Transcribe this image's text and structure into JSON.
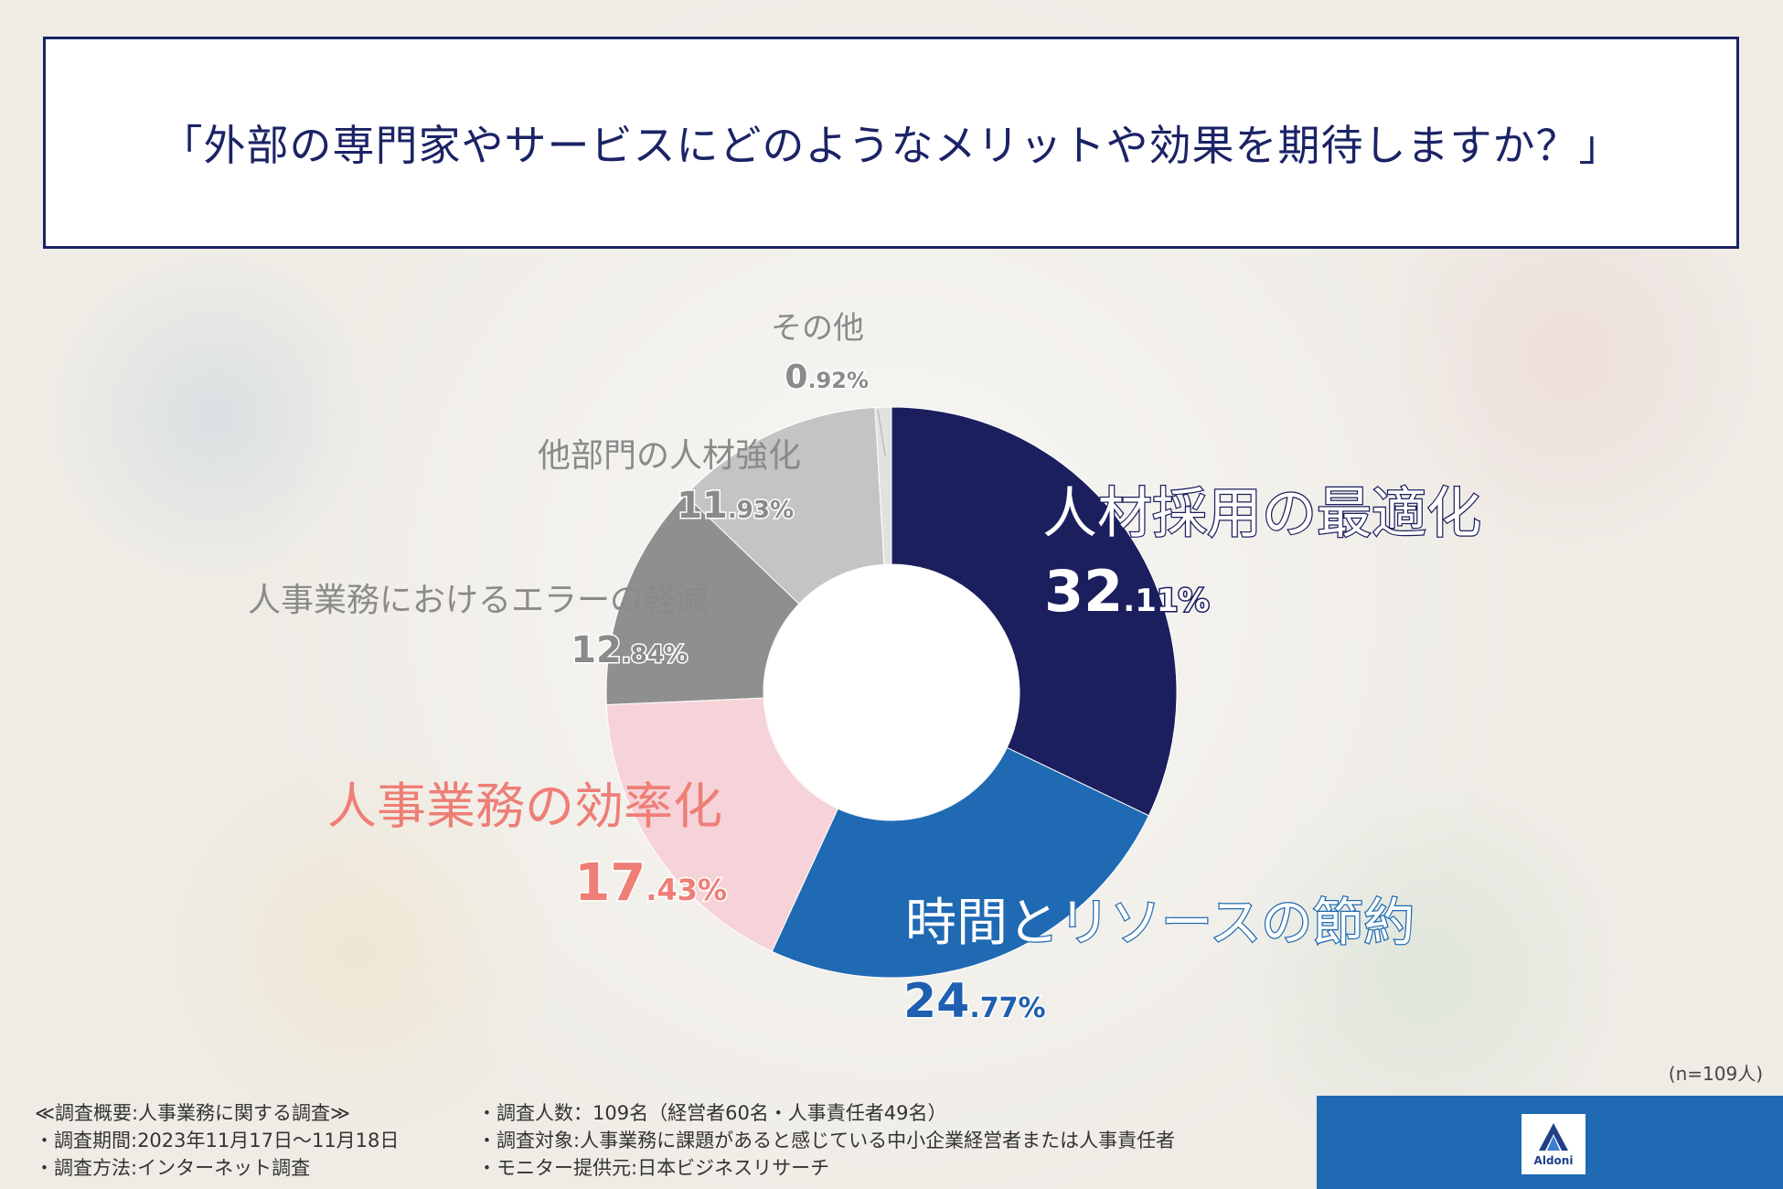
{
  "title": "「外部の専門家やサービスにどのようなメリットや効果を期待しますか？」",
  "chart_data": {
    "type": "pie",
    "variant": "donut",
    "title": "「外部の専門家やサービスにどのようなメリットや効果を期待しますか？」",
    "slices": [
      {
        "label": "人材採用の最適化",
        "value": 32.11,
        "int": "32",
        "dec": ".11%",
        "color": "#1b1f5e",
        "labelColor": "#ffffff",
        "pctColor": "#ffffff"
      },
      {
        "label": "時間とリソースの節約",
        "value": 24.77,
        "int": "24",
        "dec": ".77%",
        "color": "#1f6ab3",
        "labelColor": "#ffffff",
        "pctColor": "#1f5fb0"
      },
      {
        "label": "人事業務の効率化",
        "value": 17.43,
        "int": "17",
        "dec": ".43%",
        "color": "#f6d3d8",
        "labelColor": "#ee7e76",
        "pctColor": "#ee7e76"
      },
      {
        "label": "人事業務におけるエラーの軽減",
        "value": 12.84,
        "int": "12",
        "dec": ".84%",
        "color": "#8f8f8f",
        "labelColor": "#8a8a8a",
        "pctColor": "#8a8a8a"
      },
      {
        "label": "他部門の人材強化",
        "value": 11.93,
        "int": "11",
        "dec": ".93%",
        "color": "#c4c4c4",
        "labelColor": "#8a8a8a",
        "pctColor": "#8a8a8a"
      },
      {
        "label": "その他",
        "value": 0.92,
        "int": "0",
        "dec": ".92%",
        "color": "#e2e2e2",
        "labelColor": "#8a8a8a",
        "pctColor": "#8a8a8a"
      }
    ]
  },
  "sample_size": "(n=109人)",
  "survey": {
    "header": "≪調査概要:人事業務に関する調査≫",
    "period": "・調査期間:2023年11月17日～11月18日",
    "method": "・調査方法:インターネット調査",
    "count": "・調査人数：109名（経営者60名・人事責任者49名）",
    "target": "・調査対象:人事業務に課題があると感じている中小企業経営者または人事責任者",
    "provider": "・モニター提供元:日本ビジネスリサーチ"
  },
  "brand": {
    "name": "Aldoni",
    "color": "#1f6ab3"
  }
}
